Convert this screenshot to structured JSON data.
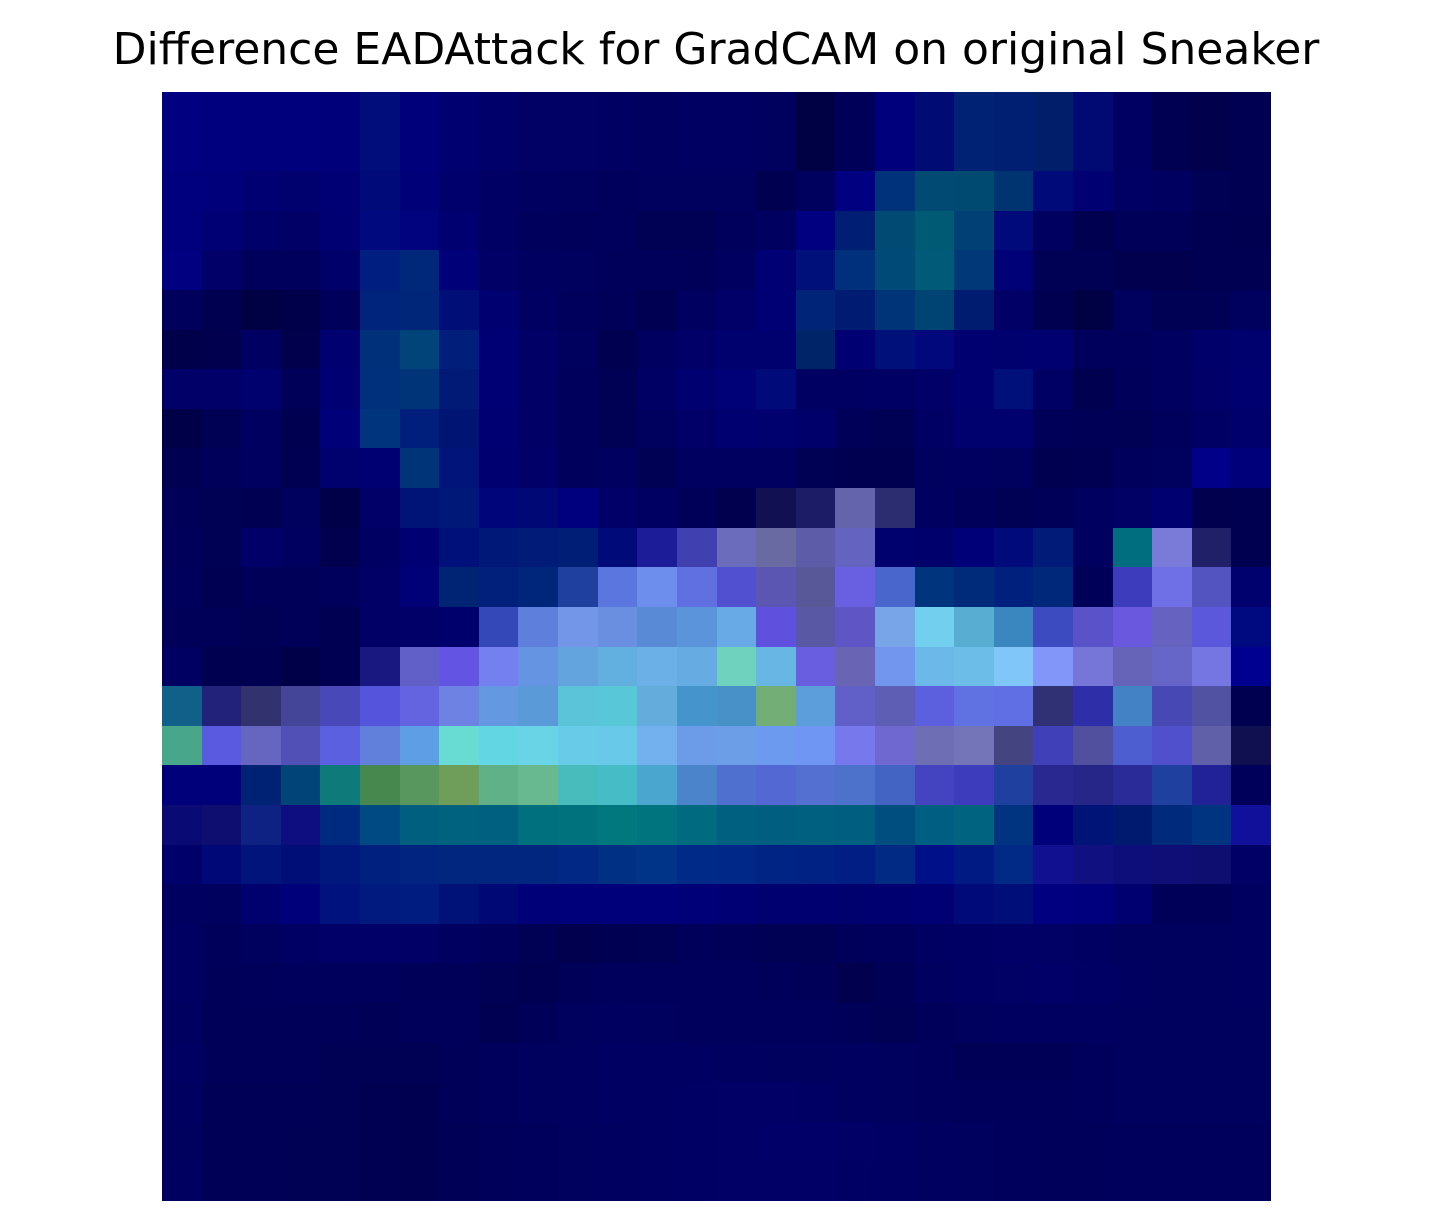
{
  "chart_data": {
    "type": "heatmap",
    "title": "Difference EADAttack for GradCAM on original Sneaker",
    "xlabel": "",
    "ylabel": "",
    "rows": 28,
    "cols": 28,
    "axes_visible": false,
    "grid": false,
    "colors": {
      "background": "#ffffff",
      "default_cell": "#00004a"
    },
    "pixels": [
      [
        "#000080",
        "#00007f",
        "#00007d",
        "#00007c",
        "#00007a",
        "#000d7a",
        "#00007a",
        "#000070",
        "#00006a",
        "#000065",
        "#000065",
        "#000062",
        "#000060",
        "#000062",
        "#000062",
        "#00005e",
        "#000044",
        "#000058",
        "#00007d",
        "#000c74",
        "#002274",
        "#001e72",
        "#001e6a",
        "#000a72",
        "#000062",
        "#000052",
        "#00004c",
        "#000052"
      ],
      [
        "#000080",
        "#00007f",
        "#00007d",
        "#00007c",
        "#00007a",
        "#000d7a",
        "#00007a",
        "#000070",
        "#00006a",
        "#000065",
        "#000065",
        "#000062",
        "#000060",
        "#000062",
        "#000062",
        "#00005e",
        "#000044",
        "#000058",
        "#00007d",
        "#000c74",
        "#002274",
        "#001e72",
        "#001e6a",
        "#000a72",
        "#000062",
        "#000052",
        "#00004c",
        "#000052"
      ],
      [
        "#00007f",
        "#00007a",
        "#000072",
        "#00006f",
        "#000075",
        "#000a79",
        "#000079",
        "#00006d",
        "#000064",
        "#000060",
        "#00005e",
        "#00005c",
        "#00005e",
        "#00005e",
        "#00005e",
        "#000050",
        "#00005e",
        "#000080",
        "#00317b",
        "#004a74",
        "#004a72",
        "#003470",
        "#000a78",
        "#000072",
        "#000064",
        "#000060",
        "#000055",
        "#000052"
      ],
      [
        "#00007f",
        "#000075",
        "#00006a",
        "#000066",
        "#000072",
        "#000a7f",
        "#00037d",
        "#000070",
        "#000064",
        "#00005c",
        "#00005a",
        "#00005c",
        "#000055",
        "#000055",
        "#00005c",
        "#000060",
        "#000080",
        "#001e74",
        "#004a74",
        "#005a74",
        "#004074",
        "#000a7b",
        "#000060",
        "#000050",
        "#000058",
        "#000058",
        "#000052",
        "#000050"
      ],
      [
        "#000080",
        "#000068",
        "#00005c",
        "#00005c",
        "#00006a",
        "#001e80",
        "#00287a",
        "#000078",
        "#000066",
        "#000060",
        "#00005e",
        "#00005a",
        "#00005a",
        "#000058",
        "#000060",
        "#000075",
        "#00107a",
        "#00307c",
        "#004a78",
        "#005a78",
        "#003878",
        "#000077",
        "#000055",
        "#000055",
        "#00004e",
        "#00004e",
        "#000052",
        "#000052"
      ],
      [
        "#00005c",
        "#000050",
        "#000044",
        "#00004a",
        "#00005a",
        "#00247c",
        "#00267a",
        "#000f78",
        "#000070",
        "#000062",
        "#00005c",
        "#000058",
        "#000052",
        "#000060",
        "#000068",
        "#000075",
        "#002478",
        "#001b72",
        "#003478",
        "#004474",
        "#001c70",
        "#000066",
        "#000050",
        "#000044",
        "#00005e",
        "#000055",
        "#000055",
        "#00005e"
      ],
      [
        "#00004a",
        "#00004e",
        "#000062",
        "#00004c",
        "#000070",
        "#00307a",
        "#00447a",
        "#001e7a",
        "#000075",
        "#000066",
        "#00005e",
        "#000050",
        "#000060",
        "#000068",
        "#00006e",
        "#00006f",
        "#002468",
        "#000072",
        "#00107a",
        "#00087c",
        "#000070",
        "#00006e",
        "#000070",
        "#00005c",
        "#00005c",
        "#000060",
        "#00006a",
        "#00006e"
      ],
      [
        "#000068",
        "#000068",
        "#00006e",
        "#000058",
        "#000072",
        "#00307c",
        "#003478",
        "#001a76",
        "#000075",
        "#000066",
        "#00005c",
        "#000055",
        "#000064",
        "#000070",
        "#000077",
        "#000a78",
        "#000062",
        "#000062",
        "#000064",
        "#000068",
        "#000070",
        "#00107a",
        "#000064",
        "#000050",
        "#00005a",
        "#000060",
        "#000068",
        "#000070"
      ],
      [
        "#000048",
        "#000055",
        "#000060",
        "#000050",
        "#000078",
        "#00347c",
        "#001e7c",
        "#001474",
        "#000072",
        "#000066",
        "#00005c",
        "#000055",
        "#00005e",
        "#000068",
        "#000070",
        "#00006e",
        "#00006a",
        "#000058",
        "#000054",
        "#000064",
        "#00006e",
        "#00006f",
        "#000058",
        "#000056",
        "#000054",
        "#00005c",
        "#000064",
        "#00006c"
      ],
      [
        "#000052",
        "#00005a",
        "#000060",
        "#000052",
        "#00006e",
        "#000073",
        "#003479",
        "#00147a",
        "#000070",
        "#000068",
        "#00005c",
        "#000060",
        "#000055",
        "#000060",
        "#000060",
        "#000060",
        "#000055",
        "#000050",
        "#000050",
        "#00005e",
        "#000060",
        "#00005e",
        "#000050",
        "#000052",
        "#00005c",
        "#00005e",
        "#000089",
        "#00007a"
      ],
      [
        "#000058",
        "#000054",
        "#000052",
        "#00005e",
        "#000048",
        "#000068",
        "#001478",
        "#001978",
        "#00067a",
        "#000875",
        "#00007e",
        "#000068",
        "#000062",
        "#000058",
        "#00004e",
        "#101052",
        "#1c1c66",
        "#6464ac",
        "#2c2c70",
        "#000060",
        "#00005a",
        "#000054",
        "#000058",
        "#000060",
        "#000065",
        "#000070",
        "#00004e",
        "#000050"
      ],
      [
        "#00005a",
        "#000055",
        "#000068",
        "#000060",
        "#00004e",
        "#000062",
        "#000072",
        "#00107a",
        "#001878",
        "#001b78",
        "#001e76",
        "#000a78",
        "#1c1c98",
        "#4040b0",
        "#6c6cbc",
        "#6a6aa2",
        "#5c5ca8",
        "#6464c0",
        "#00006e",
        "#00006c",
        "#000078",
        "#000a7a",
        "#001c78",
        "#000060",
        "#006e7e",
        "#7a7ad8",
        "#202068",
        "#000050"
      ],
      [
        "#00005c",
        "#000052",
        "#000058",
        "#000058",
        "#00005c",
        "#000066",
        "#000077",
        "#002474",
        "#00207c",
        "#00267c",
        "#2040a0",
        "#5c76e0",
        "#6e8eee",
        "#6070e0",
        "#5050d0",
        "#5a56b2",
        "#585898",
        "#6860e0",
        "#4866cc",
        "#00347c",
        "#002a7a",
        "#00207e",
        "#00287a",
        "#000058",
        "#3c3cbc",
        "#7070e6",
        "#5454c0",
        "#00006e"
      ],
      [
        "#000058",
        "#000058",
        "#000055",
        "#000058",
        "#000052",
        "#000066",
        "#000068",
        "#00006c",
        "#3448b8",
        "#5e80dc",
        "#7496e8",
        "#6a8ee0",
        "#588ad6",
        "#5c94dc",
        "#68aae6",
        "#6050de",
        "#5858a4",
        "#6055c4",
        "#78a4e8",
        "#72d0ee",
        "#58aed2",
        "#3a86be",
        "#3c4cc0",
        "#5a52c8",
        "#6a58de",
        "#6662c0",
        "#5c58dc",
        "#000a80"
      ],
      [
        "#000062",
        "#000050",
        "#000052",
        "#000048",
        "#000052",
        "#181880",
        "#6060c8",
        "#6454e4",
        "#7480f0",
        "#6494e2",
        "#64a4de",
        "#62b0e0",
        "#6cb0e8",
        "#66ace2",
        "#6ed2be",
        "#68b6e4",
        "#6a5ee0",
        "#6a64b4",
        "#7296ee",
        "#6cb8e8",
        "#6cbee8",
        "#80c6f8",
        "#8296fa",
        "#7676d8",
        "#6664b8",
        "#6666c8",
        "#7676e2",
        "#000090"
      ],
      [
        "#10608a",
        "#22227a",
        "#32326e",
        "#444498",
        "#4848b8",
        "#5454dc",
        "#6464e0",
        "#6e82e4",
        "#6498e0",
        "#5a9ad8",
        "#5cc4d8",
        "#58c8d8",
        "#64acdc",
        "#4694cc",
        "#4890c8",
        "#72ae76",
        "#5c9edc",
        "#6060c8",
        "#5e5eb4",
        "#5c60de",
        "#6072e2",
        "#6070e4",
        "#303074",
        "#2e2ea8",
        "#4482c6",
        "#4848b4",
        "#5252a2",
        "#000050"
      ],
      [
        "#48a68a",
        "#5a5ae0",
        "#6666c0",
        "#5050b6",
        "#5a60e0",
        "#6080dc",
        "#5e9ee4",
        "#68dcd2",
        "#62d6e2",
        "#68d4e6",
        "#68cce8",
        "#68cae8",
        "#72b0ee",
        "#6c9ce8",
        "#6c9ee8",
        "#6c9aee",
        "#6e96f2",
        "#7678ec",
        "#6e68d0",
        "#6e6eb4",
        "#7474b8",
        "#444480",
        "#4040b8",
        "#50509e",
        "#4c5ed0",
        "#5050cc",
        "#6060a8",
        "#101050"
      ],
      [
        "#00007a",
        "#00007a",
        "#002274",
        "#004478",
        "#0e7a7a",
        "#46884e",
        "#58985e",
        "#6e9e5a",
        "#60b088",
        "#68b890",
        "#48bcbc",
        "#46bcc6",
        "#4aa6ce",
        "#4c84cc",
        "#5070d0",
        "#5468d4",
        "#5470d0",
        "#4c72cc",
        "#4464c4",
        "#4444c0",
        "#3c3cbc",
        "#2040a0",
        "#282890",
        "#262688",
        "#2a2a98",
        "#2040a0",
        "#222298",
        "#00005a"
      ],
      [
        "#0a0a74",
        "#0e0e70",
        "#0e2284",
        "#0e0e80",
        "#002a80",
        "#004a84",
        "#005e7e",
        "#00627e",
        "#006080",
        "#00707e",
        "#00727e",
        "#00787e",
        "#00747e",
        "#006a80",
        "#006080",
        "#005e80",
        "#006080",
        "#005e80",
        "#004e80",
        "#005e82",
        "#006480",
        "#003480",
        "#00007a",
        "#001478",
        "#001a70",
        "#002a7c",
        "#003480",
        "#10109a"
      ],
      [
        "#00006a",
        "#000878",
        "#00147c",
        "#000e78",
        "#00187c",
        "#002080",
        "#002480",
        "#002680",
        "#002680",
        "#002680",
        "#002884",
        "#003084",
        "#003488",
        "#002a88",
        "#002888",
        "#002484",
        "#002284",
        "#001e84",
        "#002a84",
        "#001088",
        "#001a84",
        "#002a86",
        "#101090",
        "#101080",
        "#0e0e7a",
        "#0e0e76",
        "#0e0e70",
        "#000066"
      ],
      [
        "#000060",
        "#00005e",
        "#00006e",
        "#00007a",
        "#00127e",
        "#001a80",
        "#001c80",
        "#001278",
        "#000876",
        "#000078",
        "#00007a",
        "#00007a",
        "#00007a",
        "#000078",
        "#000074",
        "#000070",
        "#000070",
        "#00006e",
        "#000070",
        "#000074",
        "#000a78",
        "#000e7a",
        "#000080",
        "#00007e",
        "#000070",
        "#000058",
        "#000058",
        "#000060"
      ],
      [
        "#000062",
        "#00005a",
        "#00005e",
        "#000064",
        "#000068",
        "#000068",
        "#000066",
        "#000060",
        "#00005c",
        "#000055",
        "#00004f",
        "#000052",
        "#000054",
        "#00005a",
        "#000058",
        "#000055",
        "#000055",
        "#00005a",
        "#00005c",
        "#000062",
        "#000064",
        "#000066",
        "#000065",
        "#000062",
        "#00005e",
        "#00005e",
        "#00005e",
        "#000060"
      ],
      [
        "#000062",
        "#000058",
        "#00005a",
        "#00005c",
        "#00005c",
        "#00005c",
        "#000058",
        "#000058",
        "#000054",
        "#000052",
        "#000058",
        "#00005c",
        "#00005c",
        "#00005c",
        "#00005c",
        "#00005a",
        "#000058",
        "#00004e",
        "#000056",
        "#000060",
        "#000064",
        "#000065",
        "#000068",
        "#000064",
        "#000060",
        "#00005e",
        "#00005e",
        "#000060"
      ],
      [
        "#000060",
        "#000058",
        "#000058",
        "#000058",
        "#000058",
        "#000056",
        "#00005a",
        "#00005a",
        "#000052",
        "#000058",
        "#00005e",
        "#000060",
        "#00005e",
        "#00005c",
        "#00005c",
        "#00005c",
        "#00005c",
        "#000058",
        "#000054",
        "#00005a",
        "#00005e",
        "#000060",
        "#000060",
        "#000060",
        "#00005e",
        "#00005e",
        "#00005e",
        "#00005e"
      ],
      [
        "#000062",
        "#000058",
        "#000058",
        "#000058",
        "#000055",
        "#000055",
        "#000055",
        "#000058",
        "#00005c",
        "#00005e",
        "#000060",
        "#000062",
        "#000062",
        "#000062",
        "#000060",
        "#00005e",
        "#00005e",
        "#000060",
        "#00005e",
        "#00005c",
        "#000056",
        "#000056",
        "#000056",
        "#00005c",
        "#00005e",
        "#00005e",
        "#00005e",
        "#00005e"
      ],
      [
        "#000060",
        "#000056",
        "#000056",
        "#000056",
        "#000054",
        "#000052",
        "#000050",
        "#000058",
        "#00005c",
        "#00005e",
        "#000060",
        "#000062",
        "#000062",
        "#000064",
        "#000066",
        "#000066",
        "#000064",
        "#000060",
        "#00005e",
        "#00005c",
        "#00005a",
        "#00005a",
        "#00005a",
        "#00005c",
        "#00005e",
        "#00005e",
        "#00005e",
        "#00005e"
      ],
      [
        "#00005e",
        "#000056",
        "#000056",
        "#000055",
        "#000054",
        "#000052",
        "#000050",
        "#000056",
        "#00005a",
        "#00005c",
        "#00005e",
        "#000060",
        "#000062",
        "#000064",
        "#000066",
        "#000068",
        "#000068",
        "#000066",
        "#000064",
        "#000060",
        "#00005e",
        "#00005c",
        "#00005a",
        "#00005a",
        "#00005c",
        "#00005c",
        "#00005c",
        "#00005c"
      ],
      [
        "#000060",
        "#000056",
        "#000056",
        "#000055",
        "#000054",
        "#000052",
        "#000050",
        "#000056",
        "#00005a",
        "#00005c",
        "#00005e",
        "#000060",
        "#000062",
        "#000064",
        "#000066",
        "#000066",
        "#000066",
        "#000064",
        "#000062",
        "#000060",
        "#00005e",
        "#00005c",
        "#00005a",
        "#00005a",
        "#00005c",
        "#00005c",
        "#00005c",
        "#00005c"
      ]
    ]
  }
}
